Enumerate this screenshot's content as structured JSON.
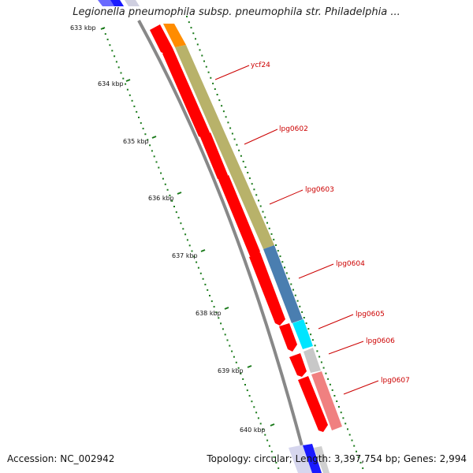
{
  "title": "Legionella pneumophila subsp. pneumophila str. Philadelphia ...",
  "footer": {
    "accession": "Accession: NC_002942",
    "summary": "Topology: circular; Length: 3,397,754 bp; Genes: 2,994"
  },
  "kbp_labels": [
    "633 kbp",
    "634 kbp",
    "635 kbp",
    "636 kbp",
    "637 kbp",
    "638 kbp",
    "639 kbp",
    "640 kbp"
  ],
  "gene_labels": [
    "ycf24",
    "lpg0602",
    "lpg0603",
    "lpg0604",
    "lpg0605",
    "lpg0606",
    "lpg0607"
  ],
  "colors": {
    "gene_red": "#ff0000",
    "orange": "#ff8c00",
    "olive": "#b8b26a",
    "steel_blue": "#4a7eb0",
    "cyan": "#00e5ff",
    "light_gray": "#c8c8c8",
    "pink": "#f08080",
    "blue": "#1a1aff",
    "backbone": "#888888",
    "tick_green": "#1a7a1a"
  }
}
